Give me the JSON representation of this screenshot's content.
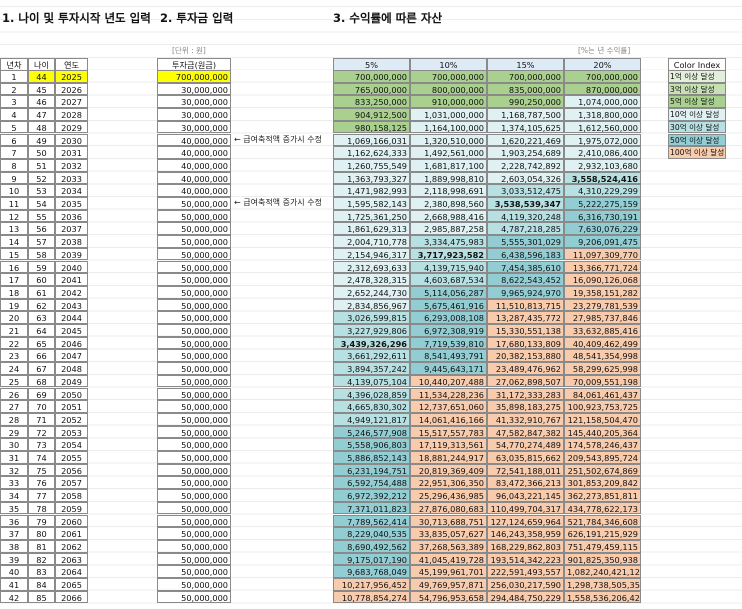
{
  "titles": [
    "1. 나이 및 투자시작 년도 입력",
    "2. 투자금 입력",
    "3. 수익률에 따른 자산"
  ],
  "unit_note": "[단위 : 원]",
  "rate_note": "[%는 년 수익률]",
  "table1": {
    "header": [
      "년차",
      "나이",
      "연도"
    ],
    "rows": [
      [
        1,
        44,
        2025
      ],
      [
        2,
        45,
        2026
      ],
      [
        3,
        46,
        2027
      ],
      [
        4,
        47,
        2028
      ],
      [
        5,
        48,
        2029
      ],
      [
        6,
        49,
        2030
      ],
      [
        7,
        50,
        2031
      ],
      [
        8,
        51,
        2032
      ],
      [
        9,
        52,
        2033
      ],
      [
        10,
        53,
        2034
      ],
      [
        11,
        54,
        2035
      ],
      [
        12,
        55,
        2036
      ],
      [
        13,
        56,
        2037
      ],
      [
        14,
        57,
        2038
      ],
      [
        15,
        58,
        2039
      ],
      [
        16,
        59,
        2040
      ],
      [
        17,
        60,
        2041
      ],
      [
        18,
        61,
        2042
      ],
      [
        19,
        62,
        2043
      ],
      [
        20,
        63,
        2044
      ],
      [
        21,
        64,
        2045
      ],
      [
        22,
        65,
        2046
      ],
      [
        23,
        66,
        2047
      ],
      [
        24,
        67,
        2048
      ],
      [
        25,
        68,
        2049
      ],
      [
        26,
        69,
        2050
      ],
      [
        27,
        70,
        2051
      ],
      [
        28,
        71,
        2052
      ],
      [
        29,
        72,
        2053
      ],
      [
        30,
        73,
        2054
      ],
      [
        31,
        74,
        2055
      ],
      [
        32,
        75,
        2056
      ],
      [
        33,
        76,
        2057
      ],
      [
        34,
        77,
        2058
      ],
      [
        35,
        78,
        2059
      ],
      [
        36,
        79,
        2060
      ],
      [
        37,
        80,
        2061
      ],
      [
        38,
        81,
        2062
      ],
      [
        39,
        82,
        2063
      ],
      [
        40,
        83,
        2064
      ],
      [
        41,
        84,
        2065
      ],
      [
        42,
        85,
        2066
      ]
    ]
  },
  "table2": {
    "header": "투자금(원금)",
    "rows": [
      {
        "amount": "700,000,000"
      },
      {
        "amount": "30,000,000"
      },
      {
        "amount": "30,000,000"
      },
      {
        "amount": "30,000,000"
      },
      {
        "amount": "30,000,000"
      },
      {
        "amount": "40,000,000",
        "note": "← 급여축적액 증가시 수정"
      },
      {
        "amount": "40,000,000"
      },
      {
        "amount": "40,000,000"
      },
      {
        "amount": "40,000,000"
      },
      {
        "amount": "40,000,000"
      },
      {
        "amount": "50,000,000",
        "note": "← 급여축적액 증가시 수정"
      },
      {
        "amount": "50,000,000"
      },
      {
        "amount": "50,000,000"
      },
      {
        "amount": "50,000,000"
      },
      {
        "amount": "50,000,000"
      },
      {
        "amount": "50,000,000"
      },
      {
        "amount": "50,000,000"
      },
      {
        "amount": "50,000,000"
      },
      {
        "amount": "50,000,000"
      },
      {
        "amount": "50,000,000"
      },
      {
        "amount": "50,000,000"
      },
      {
        "amount": "50,000,000"
      },
      {
        "amount": "50,000,000"
      },
      {
        "amount": "50,000,000"
      },
      {
        "amount": "50,000,000"
      },
      {
        "amount": "50,000,000"
      },
      {
        "amount": "50,000,000"
      },
      {
        "amount": "50,000,000"
      },
      {
        "amount": "50,000,000"
      },
      {
        "amount": "50,000,000"
      },
      {
        "amount": "50,000,000"
      },
      {
        "amount": "50,000,000"
      },
      {
        "amount": "50,000,000"
      },
      {
        "amount": "50,000,000"
      },
      {
        "amount": "50,000,000"
      },
      {
        "amount": "50,000,000"
      },
      {
        "amount": "50,000,000"
      },
      {
        "amount": "50,000,000"
      },
      {
        "amount": "50,000,000"
      },
      {
        "amount": "50,000,000"
      },
      {
        "amount": "50,000,000"
      },
      {
        "amount": "50,000,000"
      }
    ]
  },
  "table3": {
    "header": [
      "5%",
      "10%",
      "15%",
      "20%"
    ],
    "rows": [
      [
        "700,000,000",
        "700,000,000",
        "700,000,000",
        "700,000,000"
      ],
      [
        "765,000,000",
        "800,000,000",
        "835,000,000",
        "870,000,000"
      ],
      [
        "833,250,000",
        "910,000,000",
        "990,250,000",
        "1,074,000,000"
      ],
      [
        "904,912,500",
        "1,031,000,000",
        "1,168,787,500",
        "1,318,800,000"
      ],
      [
        "980,158,125",
        "1,164,100,000",
        "1,374,105,625",
        "1,612,560,000"
      ],
      [
        "1,069,166,031",
        "1,320,510,000",
        "1,620,221,469",
        "1,975,072,000"
      ],
      [
        "1,162,624,333",
        "1,492,561,000",
        "1,903,254,689",
        "2,410,086,400"
      ],
      [
        "1,260,755,549",
        "1,681,817,100",
        "2,228,742,892",
        "2,932,103,680"
      ],
      [
        "1,363,793,327",
        "1,889,998,810",
        "2,603,054,326",
        "3,558,524,416"
      ],
      [
        "1,471,982,993",
        "2,118,998,691",
        "3,033,512,475",
        "4,310,229,299"
      ],
      [
        "1,595,582,143",
        "2,380,898,560",
        "3,538,539,347",
        "5,222,275,159"
      ],
      [
        "1,725,361,250",
        "2,668,988,416",
        "4,119,320,248",
        "6,316,730,191"
      ],
      [
        "1,861,629,313",
        "2,985,887,258",
        "4,787,218,285",
        "7,630,076,229"
      ],
      [
        "2,004,710,778",
        "3,334,475,983",
        "5,555,301,029",
        "9,206,091,475"
      ],
      [
        "2,154,946,317",
        "3,717,923,582",
        "6,438,596,183",
        "11,097,309,770"
      ],
      [
        "2,312,693,633",
        "4,139,715,940",
        "7,454,385,610",
        "13,366,771,724"
      ],
      [
        "2,478,328,315",
        "4,603,687,534",
        "8,622,543,452",
        "16,090,126,068"
      ],
      [
        "2,652,244,730",
        "5,114,056,287",
        "9,965,924,970",
        "19,358,151,282"
      ],
      [
        "2,834,856,967",
        "5,675,461,916",
        "11,510,813,715",
        "23,279,781,539"
      ],
      [
        "3,026,599,815",
        "6,293,008,108",
        "13,287,435,772",
        "27,985,737,846"
      ],
      [
        "3,227,929,806",
        "6,972,308,919",
        "15,330,551,138",
        "33,632,885,416"
      ],
      [
        "3,439,326,296",
        "7,719,539,810",
        "17,680,133,809",
        "40,409,462,499"
      ],
      [
        "3,661,292,611",
        "8,541,493,791",
        "20,382,153,880",
        "48,541,354,998"
      ],
      [
        "3,894,357,242",
        "9,445,643,171",
        "23,489,476,962",
        "58,299,625,998"
      ],
      [
        "4,139,075,104",
        "10,440,207,488",
        "27,062,898,507",
        "70,009,551,198"
      ],
      [
        "4,396,028,859",
        "11,534,228,236",
        "31,172,333,283",
        "84,061,461,437"
      ],
      [
        "4,665,830,302",
        "12,737,651,060",
        "35,898,183,275",
        "100,923,753,725"
      ],
      [
        "4,949,121,817",
        "14,061,416,166",
        "41,332,910,767",
        "121,158,504,470"
      ],
      [
        "5,246,577,908",
        "15,517,557,783",
        "47,582,847,382",
        "145,440,205,364"
      ],
      [
        "5,558,906,803",
        "17,119,313,561",
        "54,770,274,489",
        "174,578,246,437"
      ],
      [
        "5,886,852,143",
        "18,881,244,917",
        "63,035,815,662",
        "209,543,895,724"
      ],
      [
        "6,231,194,751",
        "20,819,369,409",
        "72,541,188,011",
        "251,502,674,869"
      ],
      [
        "6,592,754,488",
        "22,951,306,350",
        "83,472,366,213",
        "301,853,209,842"
      ],
      [
        "6,972,392,212",
        "25,296,436,985",
        "96,043,221,145",
        "362,273,851,811"
      ],
      [
        "7,371,011,823",
        "27,876,080,683",
        "110,499,704,317",
        "434,778,622,173"
      ],
      [
        "7,789,562,414",
        "30,713,688,751",
        "127,124,659,964",
        "521,784,346,608"
      ],
      [
        "8,229,040,535",
        "33,835,057,627",
        "146,243,358,959",
        "626,191,215,929"
      ],
      [
        "8,690,492,562",
        "37,268,563,389",
        "168,229,862,803",
        "751,479,459,115"
      ],
      [
        "9,175,017,190",
        "41,045,419,728",
        "193,514,342,223",
        "901,825,350,938"
      ],
      [
        "9,683,768,049",
        "45,199,961,701",
        "222,591,493,557",
        "1,082,240,421,126"
      ],
      [
        "10,217,956,452",
        "49,769,957,871",
        "256,030,217,590",
        "1,298,738,505,351"
      ],
      [
        "10,778,854,274",
        "54,796,953,658",
        "294,484,750,229",
        "1,558,536,206,421"
      ]
    ]
  },
  "color_index": {
    "title": "Color Index",
    "items": [
      "1억 이상 달성",
      "3억 이상 달성",
      "5억 이상 달성",
      "10억 이상 달성",
      "30억 이상 달성",
      "50억 이상 달성",
      "100억 이상 달성"
    ]
  }
}
